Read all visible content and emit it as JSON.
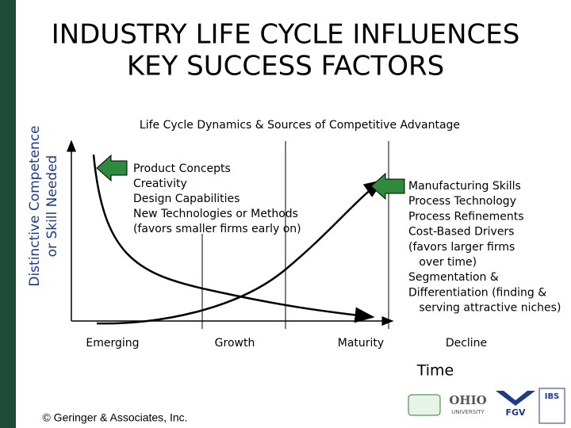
{
  "header": {
    "title": [
      "INDUSTRY LIFE CYCLE INFLUENCES",
      "KEY SUCCESS FACTORS"
    ]
  },
  "diagram": {
    "subtitle": "Life Cycle Dynamics & Sources of Competitive Advantage",
    "y_axis_label": [
      "Distinctive Competence",
      "or Skill Needed"
    ],
    "x_axis_label": "Time",
    "stages": [
      "Emerging",
      "Growth",
      "Maturity",
      "Decline"
    ],
    "early_factors": [
      "Product Concepts",
      "Creativity",
      "Design Capabilities",
      "New Technologies or Methods",
      "(favors smaller firms early on)"
    ],
    "late_factors": [
      "Manufacturing Skills",
      "Process Technology",
      "Process Refinements",
      "Cost-Based Drivers",
      "(favors larger firms",
      "   over time)",
      "Segmentation &",
      "Differentiation (finding &",
      "   serving attractive niches)"
    ]
  },
  "footer": {
    "copyright": "© Geringer & Associates, Inc.",
    "logos": [
      "OHIO",
      "UNIVERSITY",
      "FGV",
      "IBS"
    ]
  }
}
